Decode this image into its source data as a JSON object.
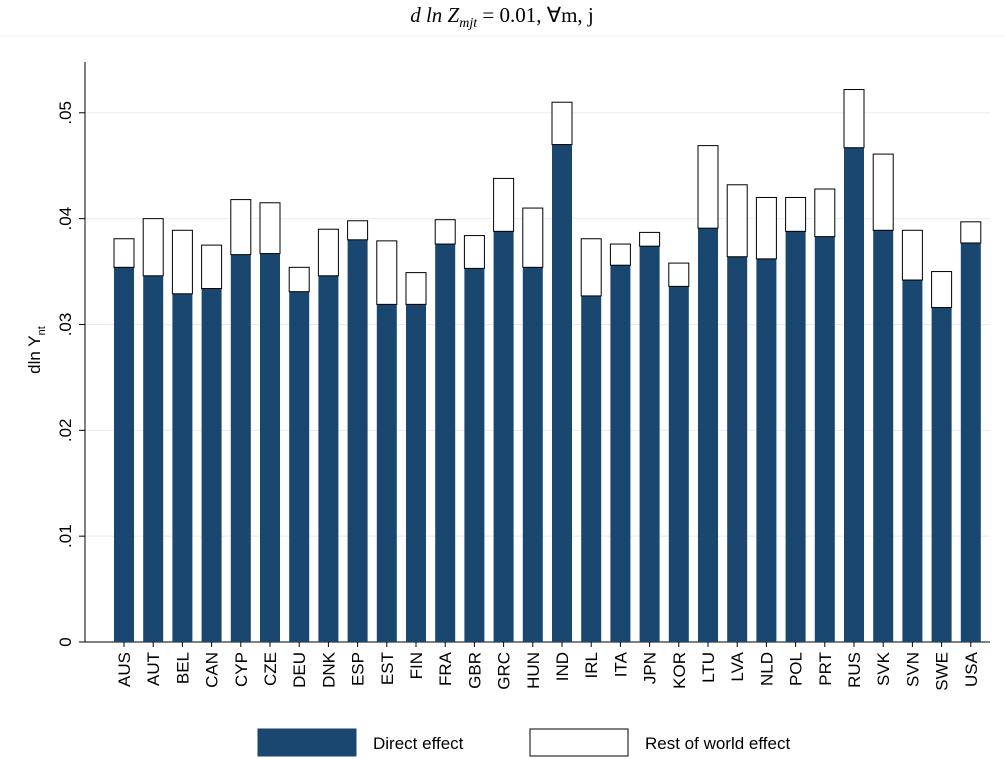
{
  "chart_data": {
    "type": "stacked-bar",
    "title": [
      "d ln Z",
      "mjt",
      " = 0.01, ∀m, j"
    ],
    "y_label": [
      "dln Y",
      "nt"
    ],
    "categories": [
      "AUS",
      "AUT",
      "BEL",
      "CAN",
      "CYP",
      "CZE",
      "DEU",
      "DNK",
      "ESP",
      "EST",
      "FIN",
      "FRA",
      "GBR",
      "GRC",
      "HUN",
      "IND",
      "IRL",
      "ITA",
      "JPN",
      "KOR",
      "LTU",
      "LVA",
      "NLD",
      "POL",
      "PRT",
      "RUS",
      "SVK",
      "SVN",
      "SWE",
      "USA"
    ],
    "series": [
      {
        "name": "Direct effect",
        "color": "#1a476f",
        "values": [
          0.0354,
          0.0346,
          0.0329,
          0.0334,
          0.0366,
          0.0367,
          0.0331,
          0.0346,
          0.038,
          0.0319,
          0.0319,
          0.0376,
          0.0353,
          0.0388,
          0.0354,
          0.047,
          0.0327,
          0.0356,
          0.0374,
          0.0336,
          0.0391,
          0.0364,
          0.0362,
          0.0388,
          0.0383,
          0.0467,
          0.0389,
          0.0342,
          0.0316,
          0.0377
        ]
      },
      {
        "name": "Rest of world effect",
        "color": "#ffffff",
        "values": [
          0.0027,
          0.0054,
          0.006,
          0.0041,
          0.0052,
          0.0048,
          0.0023,
          0.0044,
          0.0018,
          0.006,
          0.003,
          0.0023,
          0.0031,
          0.005,
          0.0056,
          0.004,
          0.0054,
          0.002,
          0.0013,
          0.0022,
          0.0078,
          0.0068,
          0.0058,
          0.0032,
          0.0045,
          0.0055,
          0.0072,
          0.0047,
          0.0034,
          0.002
        ]
      }
    ],
    "ylim": [
      0,
      0.0548
    ],
    "yticks": [
      0,
      {
        "value": 0.01,
        "label": ".01"
      },
      {
        "value": 0.02,
        "label": ".02"
      },
      {
        "value": 0.03,
        "label": ".03"
      },
      {
        "value": 0.04,
        "label": ".04"
      },
      {
        "value": 0.05,
        "label": ".05"
      }
    ],
    "grid": true
  }
}
